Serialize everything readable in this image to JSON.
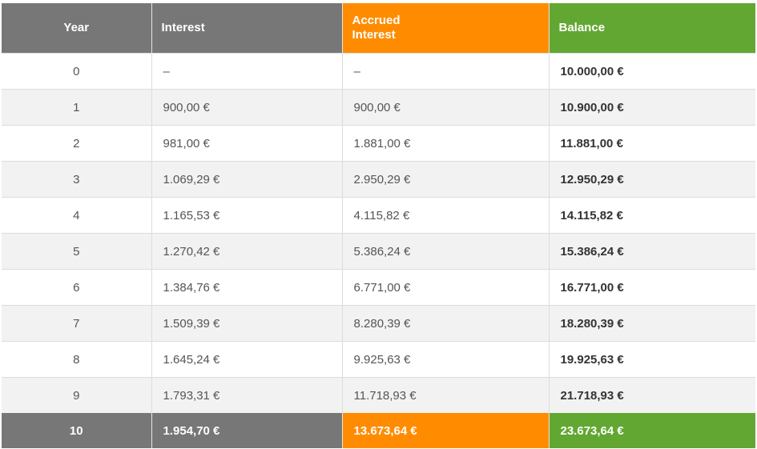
{
  "headers": {
    "year": "Year",
    "interest": "Interest",
    "accrued_line1": "Accrued",
    "accrued_line2": "Interest",
    "balance": "Balance"
  },
  "rows": [
    {
      "year": "0",
      "interest": "–",
      "accrued": "–",
      "balance": "10.000,00 €"
    },
    {
      "year": "1",
      "interest": "900,00 €",
      "accrued": "900,00 €",
      "balance": "10.900,00 €"
    },
    {
      "year": "2",
      "interest": "981,00 €",
      "accrued": "1.881,00 €",
      "balance": "11.881,00 €"
    },
    {
      "year": "3",
      "interest": "1.069,29 €",
      "accrued": "2.950,29 €",
      "balance": "12.950,29 €"
    },
    {
      "year": "4",
      "interest": "1.165,53 €",
      "accrued": "4.115,82 €",
      "balance": "14.115,82 €"
    },
    {
      "year": "5",
      "interest": "1.270,42 €",
      "accrued": "5.386,24 €",
      "balance": "15.386,24 €"
    },
    {
      "year": "6",
      "interest": "1.384,76 €",
      "accrued": "6.771,00 €",
      "balance": "16.771,00 €"
    },
    {
      "year": "7",
      "interest": "1.509,39 €",
      "accrued": "8.280,39 €",
      "balance": "18.280,39 €"
    },
    {
      "year": "8",
      "interest": "1.645,24 €",
      "accrued": "9.925,63 €",
      "balance": "19.925,63 €"
    },
    {
      "year": "9",
      "interest": "1.793,31 €",
      "accrued": "11.718,93 €",
      "balance": "21.718,93 €"
    }
  ],
  "total": {
    "year": "10",
    "interest": "1.954,70 €",
    "accrued": "13.673,64 €",
    "balance": "23.673,64 €"
  },
  "colors": {
    "header_gray": "#777777",
    "accrued_orange": "#ff8c00",
    "balance_green": "#62a732",
    "stripe": "#f2f2f2"
  }
}
